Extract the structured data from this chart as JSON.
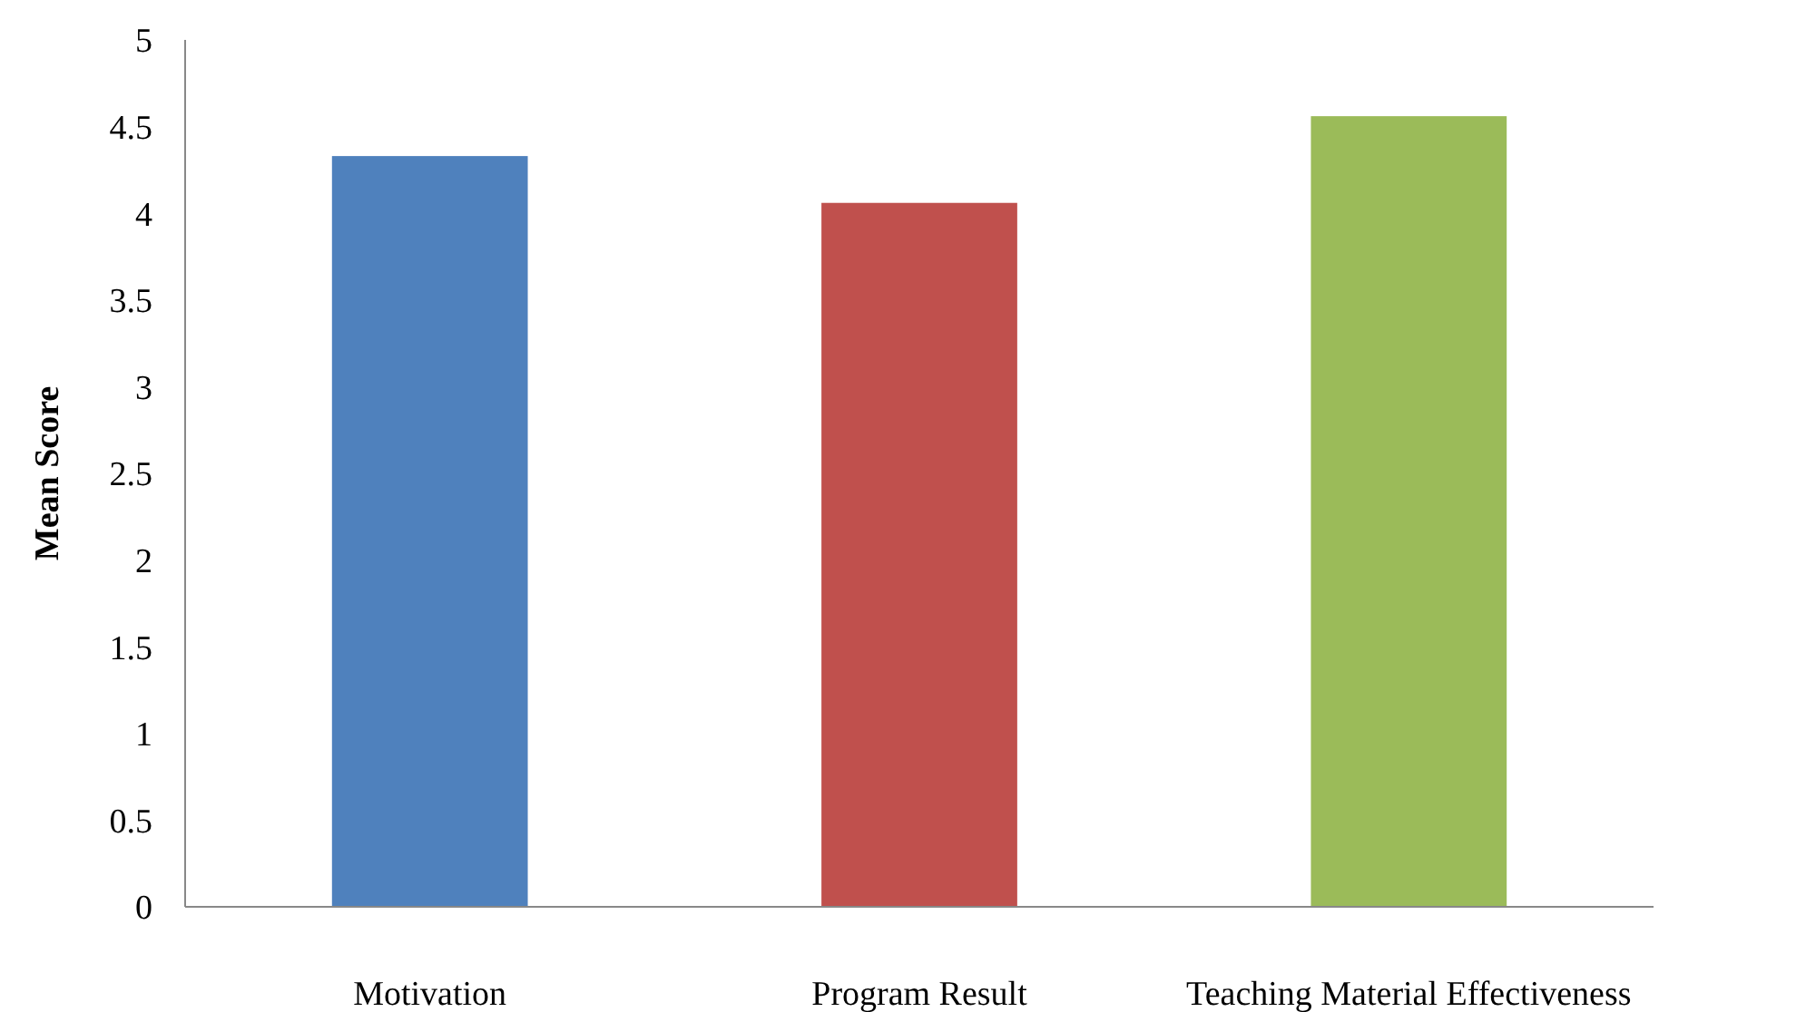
{
  "chart_data": {
    "type": "bar",
    "ylabel": "Mean Score",
    "categories": [
      "Motivation",
      "Program Result",
      "Teaching Material Effectiveness"
    ],
    "values": [
      4.33,
      4.06,
      4.56
    ],
    "colors": [
      "#4f81bd",
      "#c0504d",
      "#9bbb59"
    ],
    "ylim": [
      0,
      5
    ],
    "yticks": [
      0,
      0.5,
      1,
      1.5,
      2,
      2.5,
      3,
      3.5,
      4,
      4.5,
      5
    ]
  }
}
